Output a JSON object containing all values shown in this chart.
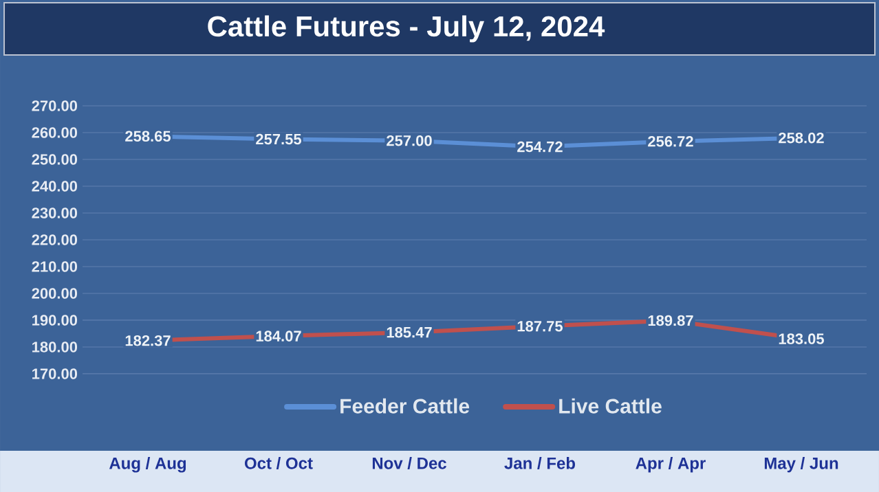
{
  "chart_data": {
    "type": "line",
    "title": "Cattle Futures - July 12, 2024",
    "categories": [
      "Aug / Aug",
      "Oct / Oct",
      "Nov / Dec",
      "Jan / Feb",
      "Apr / Apr",
      "May / Jun"
    ],
    "series": [
      {
        "name": "Feeder Cattle",
        "color": "#5b8fd6",
        "values": [
          258.65,
          257.55,
          257.0,
          254.72,
          256.72,
          258.02
        ],
        "value_labels": [
          "258.65",
          "257.55",
          "257.00",
          "254.72",
          "256.72",
          "258.02"
        ]
      },
      {
        "name": "Live Cattle",
        "color": "#c0504d",
        "values": [
          182.37,
          184.07,
          185.47,
          187.75,
          189.87,
          183.05
        ],
        "value_labels": [
          "182.37",
          "184.07",
          "185.47",
          "187.75",
          "189.87",
          "183.05"
        ]
      }
    ],
    "ylim": [
      170,
      270
    ],
    "yticks": [
      {
        "value": 170,
        "label": "170.00"
      },
      {
        "value": 180,
        "label": "180.00"
      },
      {
        "value": 190,
        "label": "190.00"
      },
      {
        "value": 200,
        "label": "200.00"
      },
      {
        "value": 210,
        "label": "210.00"
      },
      {
        "value": 220,
        "label": "220.00"
      },
      {
        "value": 230,
        "label": "230.00"
      },
      {
        "value": 240,
        "label": "240.00"
      },
      {
        "value": 250,
        "label": "250.00"
      },
      {
        "value": 260,
        "label": "260.00"
      },
      {
        "value": 270,
        "label": "270.00"
      }
    ],
    "grid": "y",
    "legend": "bottom",
    "marker": "none",
    "line_style": "solid"
  }
}
